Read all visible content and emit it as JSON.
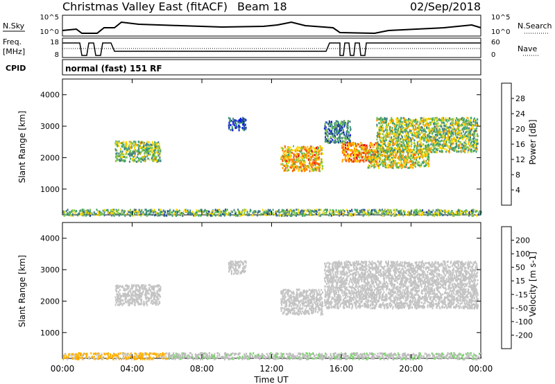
{
  "header": {
    "station": "Christmas Valley East (fitACF)",
    "beam": "Beam 18",
    "date": "02/Sep/2018"
  },
  "top_panels": {
    "nsky_label": "N.Sky",
    "nsearch_label": "N.Search",
    "nsky_ticks": [
      "10^5",
      "10^0"
    ],
    "nsearch_ticks": [
      "10^5",
      "10^0"
    ],
    "freq_label_1": "Freq.",
    "freq_label_2": "[MHz]",
    "freq_ticks": [
      "18",
      "8"
    ],
    "nave_label": "Nave",
    "nave_ticks": [
      "60",
      "0"
    ],
    "cpid_label": "CPID",
    "cpid_value": "normal (fast) 151 RF"
  },
  "colors": {
    "power": [
      "#0a14e6",
      "#1f3a9e",
      "#3f7a8a",
      "#3fa36a",
      "#7cc34a",
      "#ffd700",
      "#ff9d00",
      "#ff5a00",
      "#e60000"
    ],
    "velocity": [
      "#1f2fc9",
      "#1f6a3a",
      "#46b046",
      "#7ad66a",
      "#bdbdbd",
      "#c8c8c8",
      "#ffb000",
      "#ff8000",
      "#ff4000",
      "#e60000"
    ]
  },
  "chart_data": [
    {
      "type": "heatmap",
      "title": "Power",
      "ylabel": "Slant Range [km]",
      "colorbar_label": "Power [dB]",
      "colorbar_ticks": [
        "28",
        "24",
        "20",
        "16",
        "12",
        "8",
        "4"
      ],
      "y_ticks": [
        "4000",
        "3000",
        "2000",
        "1000"
      ],
      "x_ticks": [
        "00:00",
        "04:00",
        "08:00",
        "12:00",
        "16:00",
        "20:00",
        "00:00"
      ],
      "ylim": [
        180,
        4500
      ],
      "xlim_hours": [
        0,
        24
      ],
      "clim": [
        0,
        30
      ],
      "regions": [
        {
          "t0": 3.0,
          "t1": 5.6,
          "r0": 1900,
          "r1": 2550,
          "v": 14
        },
        {
          "t0": 9.5,
          "t1": 10.5,
          "r0": 2900,
          "r1": 3300,
          "v": 6
        },
        {
          "t0": 12.5,
          "t1": 14.9,
          "r0": 1600,
          "r1": 2400,
          "v": 20
        },
        {
          "t0": 15.0,
          "t1": 16.5,
          "r0": 2500,
          "r1": 3200,
          "v": 9
        },
        {
          "t0": 16.0,
          "t1": 18.0,
          "r0": 1900,
          "r1": 2500,
          "v": 22
        },
        {
          "t0": 17.5,
          "t1": 21.0,
          "r0": 1700,
          "r1": 2300,
          "v": 17
        },
        {
          "t0": 18.0,
          "t1": 23.8,
          "r0": 2200,
          "r1": 3300,
          "v": 15
        },
        {
          "t0": 0.0,
          "t1": 24.0,
          "r0": 180,
          "r1": 380,
          "v": 13
        }
      ]
    },
    {
      "type": "heatmap",
      "title": "Velocity",
      "ylabel": "Slant Range [km]",
      "xlabel": "Time UT",
      "colorbar_label": "Velocity [m s-1]",
      "colorbar_ticks": [
        "200",
        "100",
        "50",
        "15",
        "-15",
        "-50",
        "-100",
        "-200"
      ],
      "y_ticks": [
        "4000",
        "3000",
        "2000",
        "1000"
      ],
      "x_ticks": [
        "00:00",
        "04:00",
        "08:00",
        "12:00",
        "16:00",
        "20:00",
        "00:00"
      ],
      "ylim": [
        180,
        4500
      ],
      "xlim_hours": [
        0,
        24
      ],
      "clim": [
        -250,
        250
      ],
      "regions": [
        {
          "t0": 3.0,
          "t1": 5.6,
          "r0": 1900,
          "r1": 2550,
          "v": 0
        },
        {
          "t0": 9.5,
          "t1": 10.5,
          "r0": 2900,
          "r1": 3300,
          "v": 0
        },
        {
          "t0": 12.5,
          "t1": 14.9,
          "r0": 1600,
          "r1": 2400,
          "v": 0
        },
        {
          "t0": 15.0,
          "t1": 23.8,
          "r0": 1800,
          "r1": 3300,
          "v": 0
        },
        {
          "t0": 0.0,
          "t1": 6.0,
          "r0": 180,
          "r1": 380,
          "v": -60
        },
        {
          "t0": 6.0,
          "t1": 24.0,
          "r0": 180,
          "r1": 380,
          "v": 40
        }
      ]
    }
  ]
}
